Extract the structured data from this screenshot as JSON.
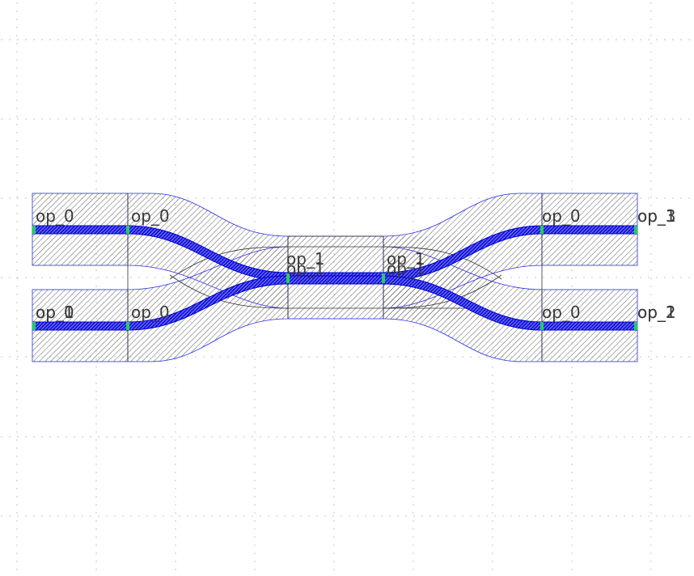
{
  "colors": {
    "background": "#ffffff",
    "grid_dot": "#b8b8b8",
    "cladding_hatch": "#5a5a5a",
    "cladding_outline": "#2a2af0",
    "core_fill": "#1a1ae0",
    "core_outline": "#0000cc",
    "cell_boundary": "#303030",
    "port_marker": "#22cc66",
    "label": "#3a3a3a"
  },
  "labels": {
    "straight_top_left": "op_0",
    "straight_bottom_left_a": "op_0",
    "straight_bottom_left_b": "op_1",
    "bend_top_left": "op_0",
    "bend_bottom_left": "op_0",
    "coupler_left_a": "op_1",
    "coupler_left_b": "op_1",
    "coupler_right_a": "op_1",
    "coupler_right_b": "op_1",
    "bend_top_right": "op_0",
    "bend_bottom_right": "op_0",
    "right_top_a": "op_3",
    "right_top_b": "op_1",
    "right_bottom_a": "op_2",
    "right_bottom_b": "op_1"
  }
}
